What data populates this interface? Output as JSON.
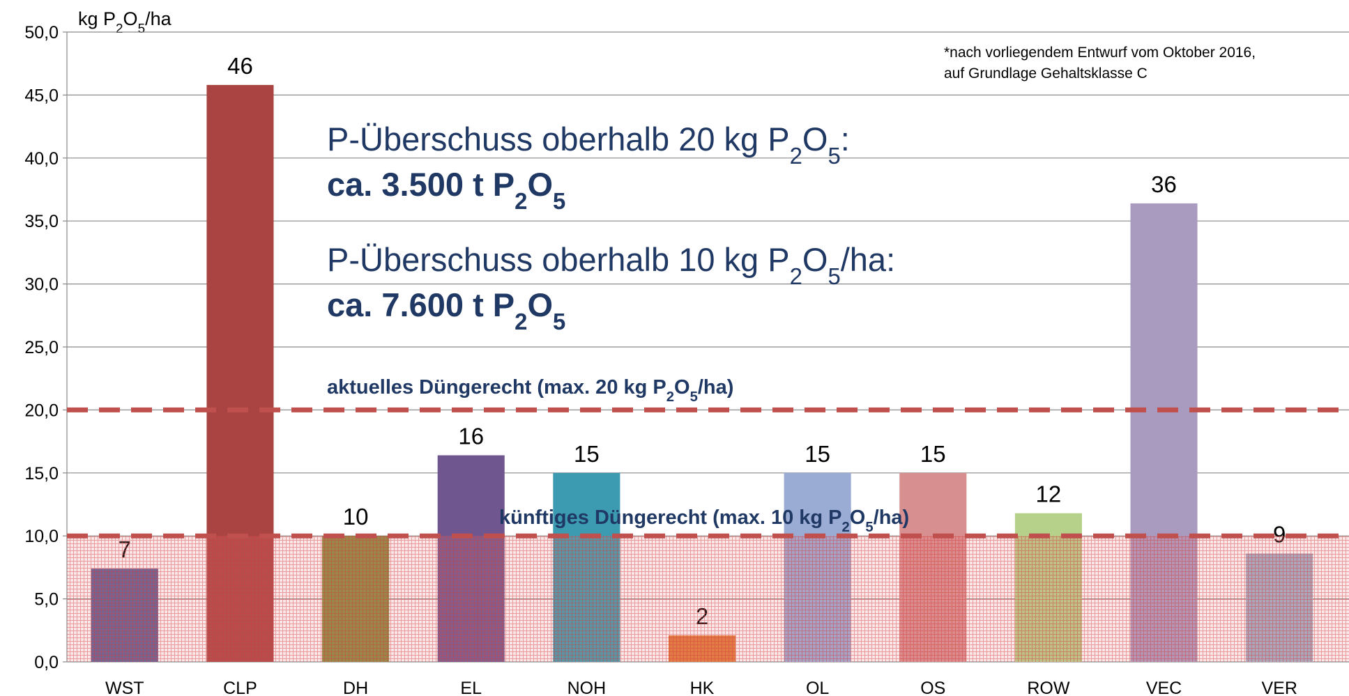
{
  "chart_data": {
    "type": "bar",
    "y_label": [
      {
        "text": "kg P"
      },
      {
        "text": "2",
        "sub": true
      },
      {
        "text": "O"
      },
      {
        "text": "5",
        "sub": true
      },
      {
        "text": "/ha"
      }
    ],
    "categories": [
      "WST",
      "CLP",
      "DH",
      "EL",
      "NOH",
      "HK",
      "OL",
      "OS",
      "ROW",
      "VEC",
      "VER"
    ],
    "values": [
      7.4,
      45.8,
      10,
      16.4,
      15,
      2.1,
      15,
      15,
      11.8,
      36.4,
      8.6
    ],
    "value_labels": [
      "7",
      "46",
      "10",
      "16",
      "15",
      "2",
      "15",
      "15",
      "12",
      "36",
      "9"
    ],
    "colors": [
      "#5f5f95",
      "#a94442",
      "#8a8a3e",
      "#6f568e",
      "#3c9bb0",
      "#e07b39",
      "#9aabd4",
      "#d88f8f",
      "#b6d18a",
      "#a99bbf",
      "#a0b0c8"
    ],
    "ylim": [
      0,
      50
    ],
    "yticks": [
      {
        "value": 0,
        "label": "0,0"
      },
      {
        "value": 5,
        "label": "5,0"
      },
      {
        "value": 10,
        "label": "10,0"
      },
      {
        "value": 15,
        "label": "15,0"
      },
      {
        "value": 20,
        "label": "20,0"
      },
      {
        "value": 25,
        "label": "25,0"
      },
      {
        "value": 30,
        "label": "30,0"
      },
      {
        "value": 35,
        "label": "35,0"
      },
      {
        "value": 40,
        "label": "40,0"
      },
      {
        "value": 45,
        "label": "45,0"
      },
      {
        "value": 50,
        "label": "50,0"
      }
    ],
    "grid": true,
    "reference_lines": [
      {
        "value": 20,
        "color": "#c0504d",
        "parts": [
          {
            "text": "aktuelles Düngerecht (max. 20 kg P"
          },
          {
            "text": "2",
            "sub": true
          },
          {
            "text": "O"
          },
          {
            "text": "5",
            "sub": true
          },
          {
            "text": "/ha)"
          }
        ]
      },
      {
        "value": 10,
        "color": "#c0504d",
        "shade_below": true,
        "parts": [
          {
            "text": "künftiges Düngerecht (max. 10 kg P"
          },
          {
            "text": "2",
            "sub": true
          },
          {
            "text": "O"
          },
          {
            "text": "5",
            "sub": true
          },
          {
            "text": "/ha)"
          }
        ]
      }
    ],
    "annotations": [
      {
        "parts": [
          {
            "text": "P-Überschuss oberhalb 20 kg P"
          },
          {
            "text": "2",
            "sub": true
          },
          {
            "text": "O"
          },
          {
            "text": "5",
            "sub": true
          },
          {
            "text": ":"
          }
        ]
      },
      {
        "bold": true,
        "parts": [
          {
            "text": "ca. 3.500 t P"
          },
          {
            "text": "2",
            "sub": true
          },
          {
            "text": "O"
          },
          {
            "text": "5",
            "sub": true
          }
        ]
      },
      {
        "parts": [
          {
            "text": "P-Überschuss oberhalb 10 kg P"
          },
          {
            "text": "2",
            "sub": true
          },
          {
            "text": "O"
          },
          {
            "text": "5",
            "sub": true
          },
          {
            "text": "/ha:"
          }
        ]
      },
      {
        "bold": true,
        "parts": [
          {
            "text": "ca. 7.600 t P"
          },
          {
            "text": "2",
            "sub": true
          },
          {
            "text": "O"
          },
          {
            "text": "5",
            "sub": true
          }
        ]
      }
    ],
    "footnote": [
      "*nach vorliegendem Entwurf vom Oktober 2016,",
      "auf Grundlage Gehaltsklasse C"
    ]
  }
}
